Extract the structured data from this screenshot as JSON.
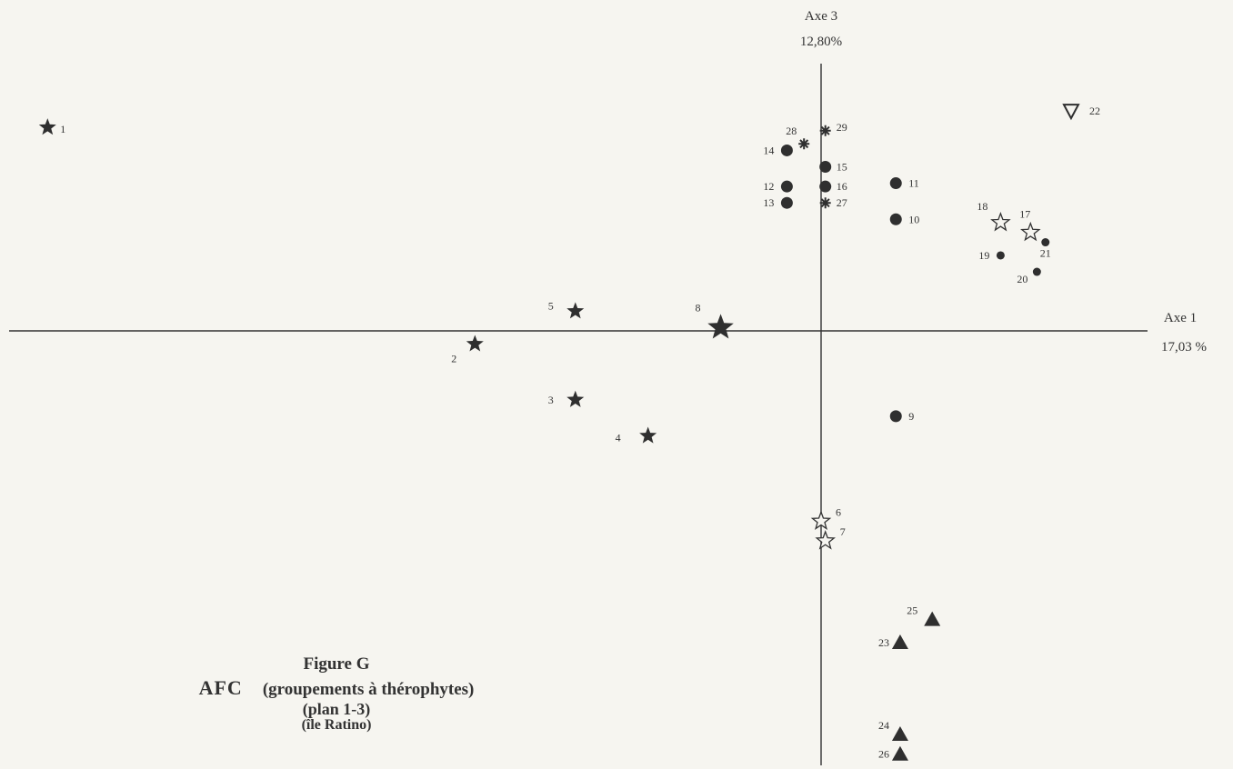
{
  "chart_data": {
    "type": "scatter",
    "xlabel": "Axe 1",
    "xlabel_pct": "17,03 %",
    "ylabel": "Axe 3",
    "ylabel_pct": "12,80%",
    "xlim": [
      -1.9,
      0.95
    ],
    "ylim": [
      -1.37,
      1.0
    ],
    "grid": false,
    "markers": {
      "star": "filled star",
      "star-big": "large filled star",
      "star-open": "open star",
      "circle": "filled circle",
      "circle-small": "small filled circle",
      "asterisk": "asterisk",
      "triangle": "filled triangle",
      "triangle-down-open": "open inverted triangle"
    },
    "points": [
      {
        "label": "1",
        "x": -1.81,
        "y": 0.62,
        "marker": "star"
      },
      {
        "label": "2",
        "x": -0.81,
        "y": -0.04,
        "marker": "star"
      },
      {
        "label": "3",
        "x": -0.575,
        "y": -0.21,
        "marker": "star"
      },
      {
        "label": "4",
        "x": -0.405,
        "y": -0.32,
        "marker": "star"
      },
      {
        "label": "5",
        "x": -0.575,
        "y": 0.06,
        "marker": "star"
      },
      {
        "label": "8",
        "x": -0.235,
        "y": 0.01,
        "marker": "star-big"
      },
      {
        "label": "6",
        "x": 0.0,
        "y": -0.58,
        "marker": "star-open"
      },
      {
        "label": "7",
        "x": 0.01,
        "y": -0.64,
        "marker": "star-open"
      },
      {
        "label": "9",
        "x": 0.175,
        "y": -0.26,
        "marker": "circle"
      },
      {
        "label": "10",
        "x": 0.175,
        "y": 0.34,
        "marker": "circle"
      },
      {
        "label": "11",
        "x": 0.175,
        "y": 0.45,
        "marker": "circle"
      },
      {
        "label": "12",
        "x": -0.08,
        "y": 0.44,
        "marker": "circle"
      },
      {
        "label": "13",
        "x": -0.08,
        "y": 0.39,
        "marker": "circle"
      },
      {
        "label": "14",
        "x": -0.08,
        "y": 0.55,
        "marker": "circle"
      },
      {
        "label": "15",
        "x": 0.01,
        "y": 0.5,
        "marker": "circle"
      },
      {
        "label": "16",
        "x": 0.01,
        "y": 0.44,
        "marker": "circle"
      },
      {
        "label": "17",
        "x": 0.49,
        "y": 0.3,
        "marker": "star-open"
      },
      {
        "label": "18",
        "x": 0.42,
        "y": 0.33,
        "marker": "star-open"
      },
      {
        "label": "19",
        "x": 0.42,
        "y": 0.23,
        "marker": "circle-small"
      },
      {
        "label": "20",
        "x": 0.505,
        "y": 0.18,
        "marker": "circle-small"
      },
      {
        "label": "21",
        "x": 0.525,
        "y": 0.27,
        "marker": "circle-small"
      },
      {
        "label": "22",
        "x": 0.585,
        "y": 0.67,
        "marker": "triangle-down-open"
      },
      {
        "label": "23",
        "x": 0.185,
        "y": -0.95,
        "marker": "triangle"
      },
      {
        "label": "24",
        "x": 0.185,
        "y": -1.23,
        "marker": "triangle"
      },
      {
        "label": "25",
        "x": 0.26,
        "y": -0.88,
        "marker": "triangle"
      },
      {
        "label": "26",
        "x": 0.185,
        "y": -1.29,
        "marker": "triangle"
      },
      {
        "label": "27",
        "x": 0.01,
        "y": 0.39,
        "marker": "asterisk"
      },
      {
        "label": "28",
        "x": -0.04,
        "y": 0.57,
        "marker": "asterisk"
      },
      {
        "label": "29",
        "x": 0.01,
        "y": 0.61,
        "marker": "asterisk"
      }
    ]
  },
  "caption": {
    "figure": "Figure G",
    "afc": "AFC",
    "subtitle": "(groupements à thérophytes)",
    "plane": "(plan 1-3)",
    "place": "(île Ratino)"
  }
}
